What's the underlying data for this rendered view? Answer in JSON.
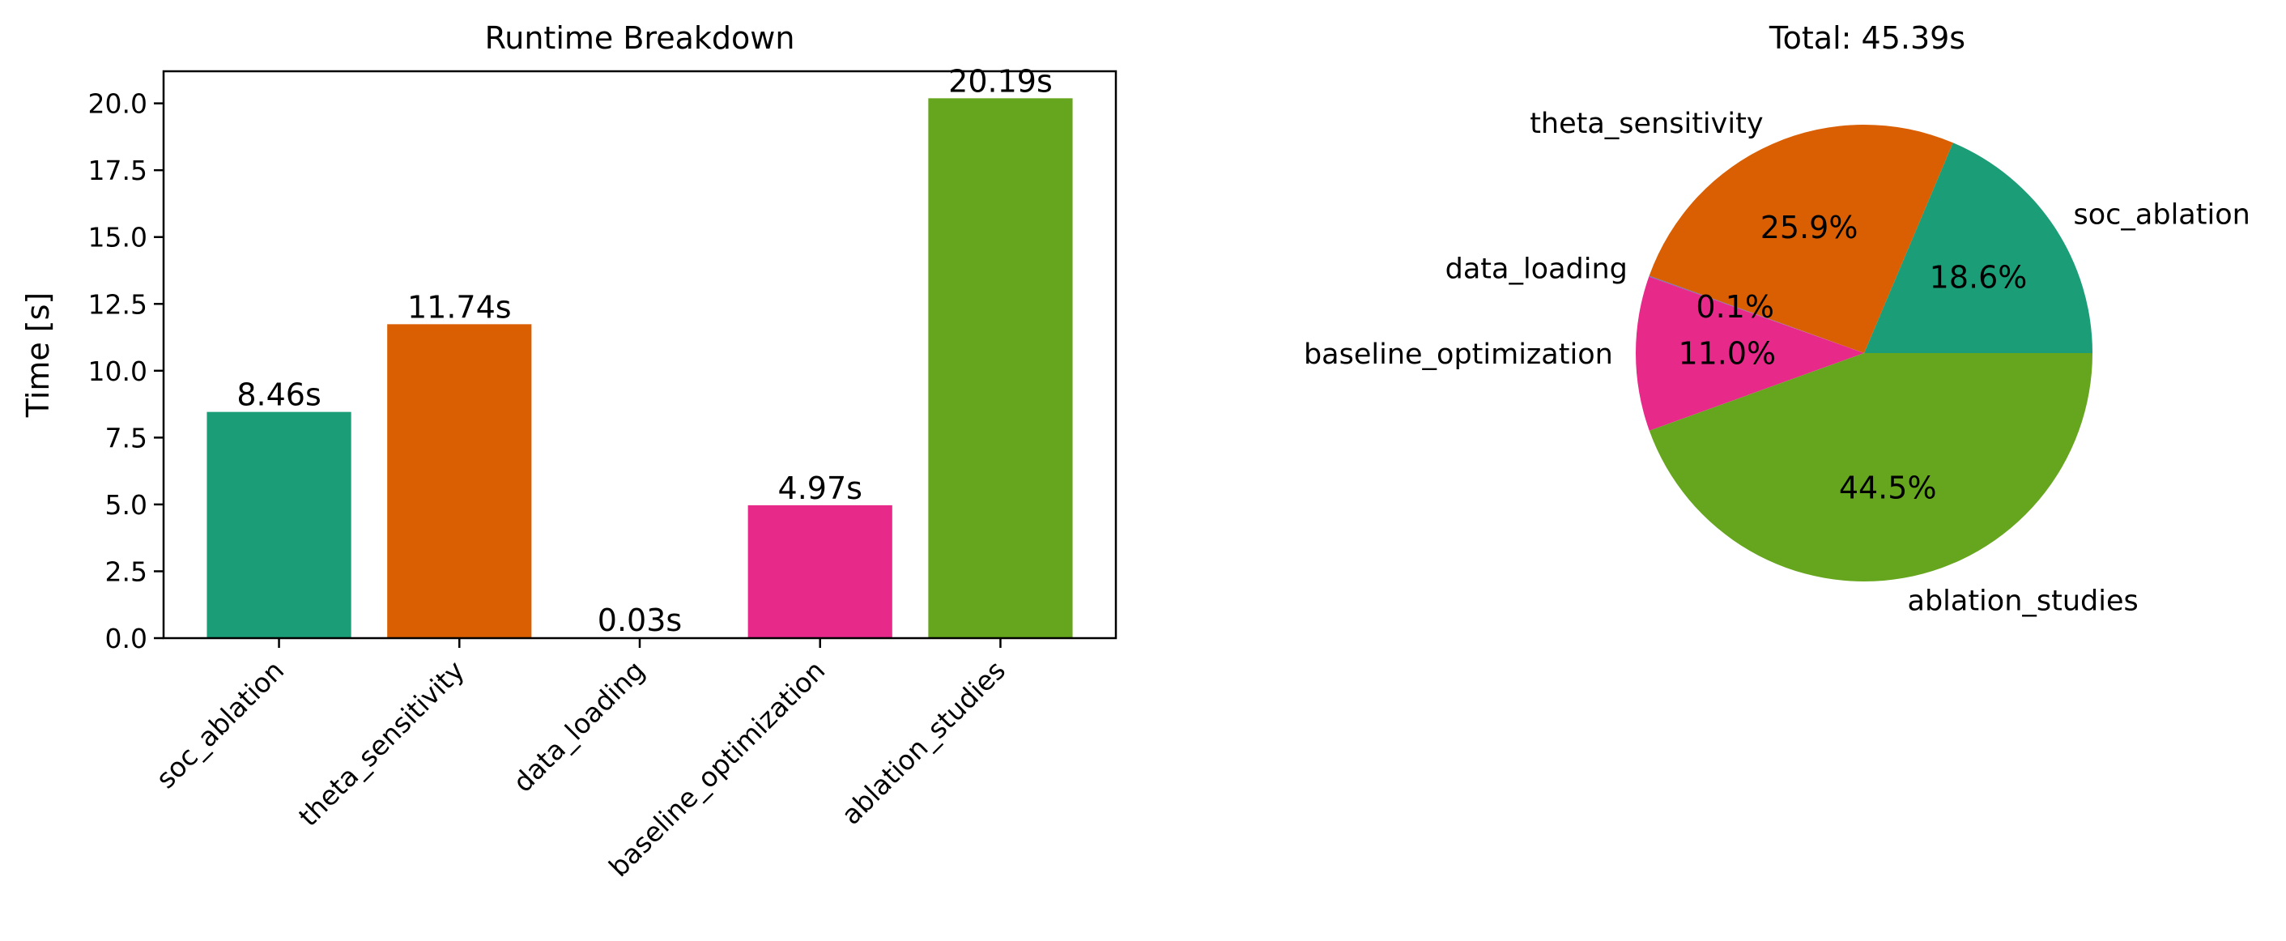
{
  "colors": {
    "soc_ablation": "#1b9e77",
    "theta_sensitivity": "#d95f02",
    "data_loading": "#7570b3",
    "baseline_optimization": "#e7298a",
    "ablation_studies": "#66a61e"
  },
  "chart_data": [
    {
      "type": "bar",
      "title": "Runtime Breakdown",
      "xlabel": "",
      "ylabel": "Time [s]",
      "categories": [
        "soc_ablation",
        "theta_sensitivity",
        "data_loading",
        "baseline_optimization",
        "ablation_studies"
      ],
      "values": [
        8.46,
        11.74,
        0.03,
        4.97,
        20.19
      ],
      "data_labels": [
        "8.46s",
        "11.74s",
        "0.03s",
        "4.97s",
        "20.19s"
      ],
      "ylim": [
        0,
        21.2
      ],
      "yticks": [
        0.0,
        2.5,
        5.0,
        7.5,
        10.0,
        12.5,
        15.0,
        17.5,
        20.0
      ],
      "ytick_labels": [
        "0.0",
        "2.5",
        "5.0",
        "7.5",
        "10.0",
        "12.5",
        "15.0",
        "17.5",
        "20.0"
      ],
      "grid": false,
      "legend": "none"
    },
    {
      "type": "pie",
      "title": "Total: 45.39s",
      "labels": [
        "soc_ablation",
        "theta_sensitivity",
        "data_loading",
        "baseline_optimization",
        "ablation_studies"
      ],
      "values": [
        8.46,
        11.74,
        0.03,
        4.97,
        20.19
      ],
      "percent_labels": [
        "18.6%",
        "25.9%",
        "0.1%",
        "11.0%",
        "44.5%"
      ],
      "start_angle": 0,
      "direction": "counterclockwise"
    }
  ]
}
